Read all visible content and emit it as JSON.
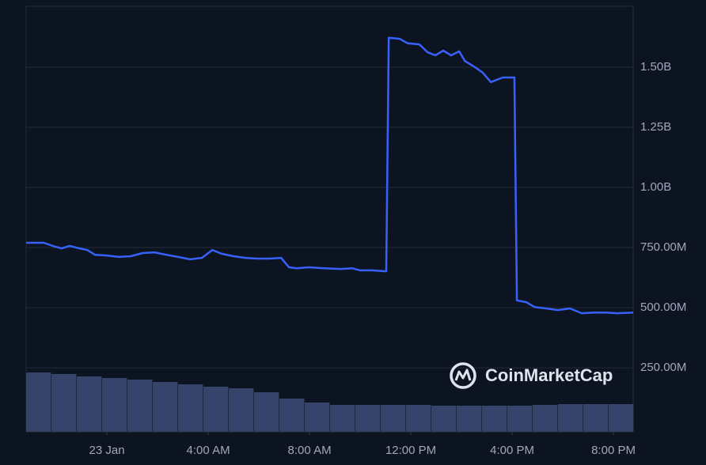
{
  "chart_data": {
    "type": "line",
    "watermark": "CoinMarketCap",
    "xlim": [
      -3.19,
      20.78
    ],
    "xticks": [
      {
        "value": 0,
        "label": "23 Jan"
      },
      {
        "value": 4,
        "label": "4:00 AM"
      },
      {
        "value": 8,
        "label": "8:00 AM"
      },
      {
        "value": 12,
        "label": "12:00 PM"
      },
      {
        "value": 16,
        "label": "4:00 PM"
      },
      {
        "value": 20,
        "label": "8:00 PM"
      }
    ],
    "ylim": [
      -16000000,
      1753000000
    ],
    "yticks": [
      {
        "value": 250000000,
        "label": "250.00M"
      },
      {
        "value": 500000000,
        "label": "500.00M"
      },
      {
        "value": 750000000,
        "label": "750.00M"
      },
      {
        "value": 1000000000,
        "label": "1.00B"
      },
      {
        "value": 1250000000,
        "label": "1.25B"
      },
      {
        "value": 1500000000,
        "label": "1.50B"
      }
    ],
    "y2lim": [
      0,
      538
    ],
    "grid": true,
    "series": [
      {
        "type": "line",
        "color": "#3861fb",
        "x": [
          -3.19,
          -2.5,
          -2.03,
          -1.78,
          -1.47,
          -1.09,
          -0.78,
          -0.47,
          0,
          0.47,
          0.94,
          1.41,
          1.88,
          2.34,
          2.81,
          3.28,
          3.75,
          4.16,
          4.53,
          5,
          5.47,
          5.94,
          6.41,
          6.88,
          7.19,
          7.5,
          7.97,
          8.59,
          9.22,
          9.69,
          10,
          10.47,
          11.03,
          11.13,
          11.56,
          11.88,
          12.34,
          12.66,
          12.97,
          13.28,
          13.59,
          13.91,
          14.13,
          14.53,
          14.84,
          15.16,
          15.63,
          16.09,
          16.19,
          16.56,
          16.88,
          17.34,
          17.81,
          18.28,
          18.75,
          19.22,
          19.69,
          20.16,
          20.78
        ],
        "values": [
          770000000,
          770000000,
          753000000,
          747000000,
          757000000,
          747000000,
          740000000,
          720000000,
          717000000,
          711000000,
          714000000,
          727000000,
          730000000,
          720000000,
          711000000,
          701000000,
          707000000,
          740000000,
          724000000,
          714000000,
          707000000,
          704000000,
          704000000,
          707000000,
          668000000,
          664000000,
          668000000,
          664000000,
          661000000,
          664000000,
          655000000,
          655000000,
          651000000,
          1622000000,
          1618000000,
          1599000000,
          1595000000,
          1562000000,
          1549000000,
          1569000000,
          1549000000,
          1566000000,
          1526000000,
          1500000000,
          1477000000,
          1438000000,
          1457000000,
          1457000000,
          530000000,
          523000000,
          503000000,
          497000000,
          490000000,
          497000000,
          477000000,
          480000000,
          480000000,
          477000000,
          480000000
        ]
      },
      {
        "type": "bar",
        "axis": "y2",
        "color": "#36436b",
        "x": [
          -2.69,
          -1.69,
          -0.69,
          0.31,
          1.31,
          2.31,
          3.31,
          4.31,
          5.31,
          6.31,
          7.31,
          8.31,
          9.31,
          10.31,
          11.31,
          12.31,
          13.31,
          14.31,
          15.31,
          16.31,
          17.31,
          18.31,
          19.31,
          20.31
        ],
        "values": [
          75,
          73,
          70,
          68,
          66,
          63,
          60,
          57,
          55,
          50,
          42,
          37,
          34,
          34,
          34,
          34,
          33,
          33,
          33,
          33,
          34,
          35,
          35,
          35
        ]
      }
    ]
  }
}
